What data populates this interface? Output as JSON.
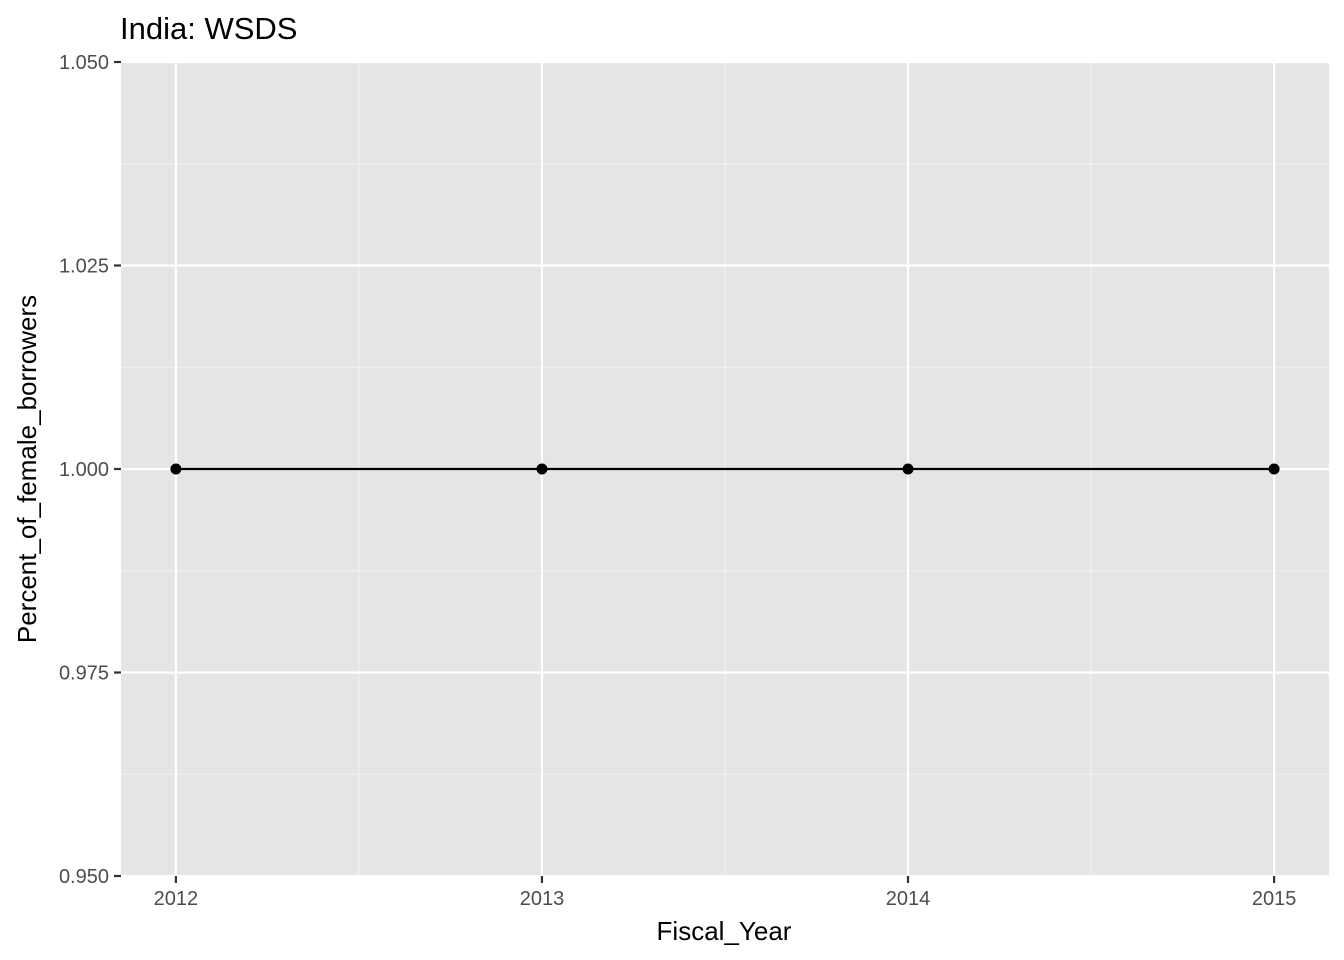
{
  "chart_data": {
    "type": "line",
    "title": "India:  WSDS",
    "xlabel": "Fiscal_Year",
    "ylabel": "Percent_of_female_borrowers",
    "x": [
      2012,
      2013,
      2014,
      2015
    ],
    "series": [
      {
        "values": [
          1.0,
          1.0,
          1.0,
          1.0
        ]
      }
    ],
    "xlim": [
      2011.85,
      2015.15
    ],
    "ylim": [
      0.95,
      1.05
    ],
    "x_ticks": [
      2012,
      2013,
      2014,
      2015
    ],
    "x_tick_labels": [
      "2012",
      "2013",
      "2014",
      "2015"
    ],
    "y_ticks": [
      0.95,
      0.975,
      1.0,
      1.025,
      1.05
    ],
    "y_tick_labels": [
      "0.950",
      "0.975",
      "1.000",
      "1.025",
      "1.050"
    ],
    "grid": true,
    "legend": "none",
    "colors": {
      "panel_background": "#e5e5e5",
      "grid_major": "#ffffff",
      "grid_minor": "#f2f2f2",
      "series": "#000000",
      "tick_label": "#4d4d4d",
      "tick_mark": "#333333"
    }
  }
}
